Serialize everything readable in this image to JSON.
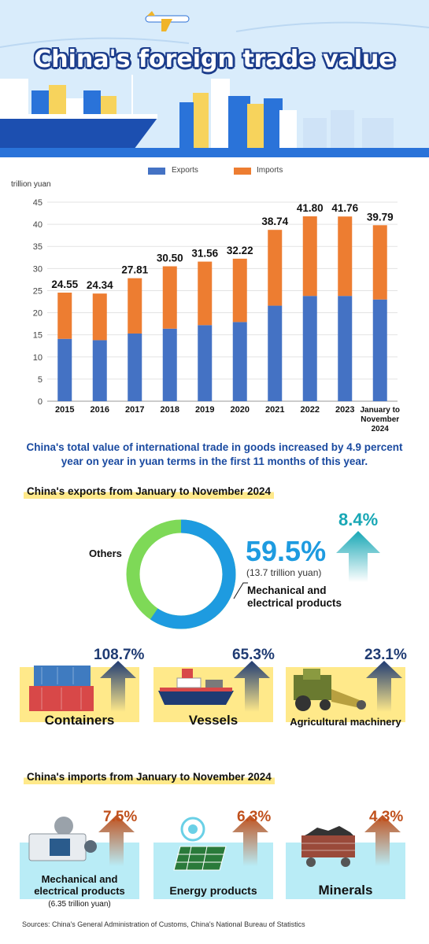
{
  "header": {
    "title": "China's foreign trade value"
  },
  "legend": {
    "exports": "Exports",
    "imports": "Imports"
  },
  "colors": {
    "exports": "#4472c4",
    "imports": "#ed7d31",
    "accent": "#1e9be0",
    "teal": "#18a7b5",
    "navy": "#1f3b73",
    "rust": "#c0501c"
  },
  "chart_data": {
    "type": "bar",
    "stacked": true,
    "ylabel": "trillion yuan",
    "ylim": [
      0,
      45
    ],
    "yticks": [
      0,
      5,
      10,
      15,
      20,
      25,
      30,
      35,
      40,
      45
    ],
    "categories": [
      "2015",
      "2016",
      "2017",
      "2018",
      "2019",
      "2020",
      "2021",
      "2022",
      "2023",
      "January to November 2024"
    ],
    "series": [
      {
        "name": "Exports",
        "values": [
          14.1,
          13.8,
          15.3,
          16.4,
          17.2,
          17.9,
          21.6,
          23.8,
          23.8,
          23.0
        ]
      },
      {
        "name": "Imports",
        "values": [
          10.45,
          10.54,
          12.51,
          14.1,
          14.36,
          14.32,
          17.14,
          18.0,
          17.96,
          16.79
        ]
      }
    ],
    "totals": [
      "24.55",
      "24.34",
      "27.81",
      "30.50",
      "31.56",
      "32.22",
      "38.74",
      "41.80",
      "41.76",
      "39.79"
    ]
  },
  "statement": "China's total value of international trade in goods increased by 4.9 percent year on year in yuan terms in the first 11 months of this year.",
  "exports_section": {
    "title": "China's exports from January to November 2024",
    "others_label": "Others",
    "main_pct": "59.5%",
    "main_pct_value": 59.5,
    "main_value": "(13.7 trillion yuan)",
    "main_label_1": "Mechanical and",
    "main_label_2": "electrical products",
    "growth": "8.4%",
    "items": [
      {
        "label": "Containers",
        "growth": "108.7%"
      },
      {
        "label": "Vessels",
        "growth": "65.3%"
      },
      {
        "label": "Agricultural machinery",
        "growth": "23.1%"
      }
    ]
  },
  "imports_section": {
    "title": "China's imports from January to November 2024",
    "items": [
      {
        "label_1": "Mechanical and",
        "label_2": "electrical products",
        "sub": "(6.35 trillion yuan)",
        "growth": "7.5%"
      },
      {
        "label": "Energy products",
        "growth": "6.3%"
      },
      {
        "label": "Minerals",
        "growth": "4.3%"
      }
    ]
  },
  "source": "Sources: China's General Administration of Customs, China's National Bureau of Statistics"
}
